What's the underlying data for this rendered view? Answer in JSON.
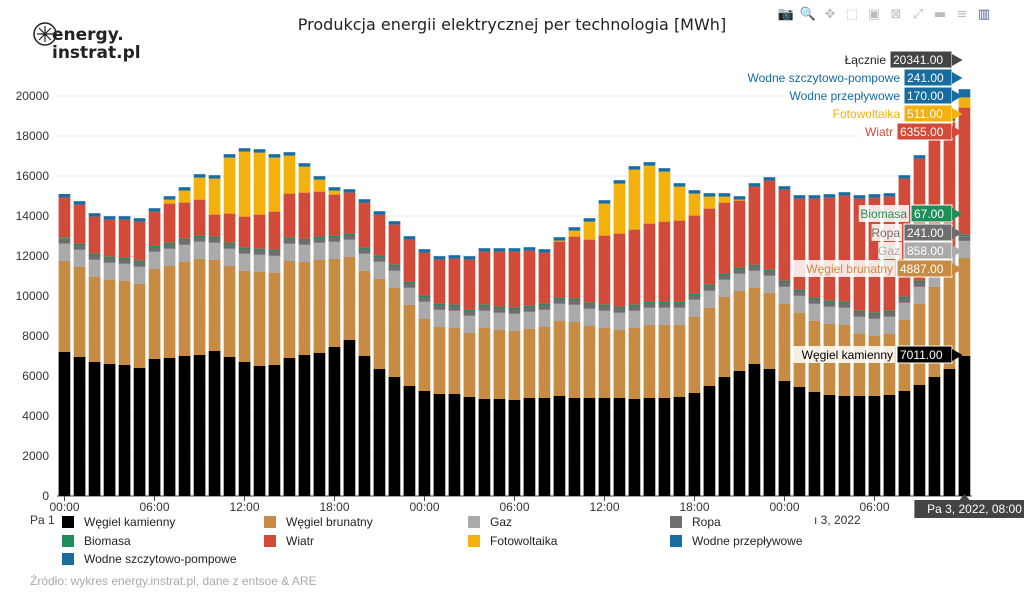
{
  "logo": {
    "line1": "energy.",
    "line2": "instrat.pl"
  },
  "modebar": [
    {
      "name": "camera-icon",
      "glyph": "📷"
    },
    {
      "name": "zoom-icon",
      "glyph": "🔍"
    },
    {
      "name": "pan-icon",
      "glyph": "✥"
    },
    {
      "name": "box-select-icon",
      "glyph": "⬚"
    },
    {
      "name": "zoom-in-icon",
      "glyph": "▣"
    },
    {
      "name": "zoom-out-icon",
      "glyph": "⊠"
    },
    {
      "name": "autoscale-icon",
      "glyph": "⤢"
    },
    {
      "name": "spike-lines-icon",
      "glyph": "▬"
    },
    {
      "name": "hover-compare-icon",
      "glyph": "≡"
    },
    {
      "name": "plotly-logo-icon",
      "glyph": "▥"
    }
  ],
  "source_text": "Źródło: wykres energy.instrat.pl, dane z entsoe & ARE",
  "hover_x_label": "Pa 3, 2022, 08:00",
  "x_tick_prefix_left": "Pa 1",
  "x_tick_suffix_right": "ı 3, 2022",
  "chart_data": {
    "type": "bar",
    "stacked": true,
    "title": "Produkcja energii elektrycznej per technologia [MWh]",
    "ylim": [
      0,
      20000
    ],
    "yticks": [
      0,
      2000,
      4000,
      6000,
      8000,
      10000,
      12000,
      14000,
      16000,
      18000,
      20000
    ],
    "xticks": [
      "00:00",
      "06:00",
      "12:00",
      "18:00",
      "00:00",
      "06:00",
      "12:00",
      "18:00",
      "00:00",
      "06:00"
    ],
    "grid": true,
    "legend_position": "bottom",
    "series": [
      {
        "name": "Węgiel kamienny",
        "color": "#000000",
        "values": [
          7200,
          6950,
          6700,
          6600,
          6550,
          6400,
          6850,
          6900,
          7000,
          7050,
          7250,
          6950,
          6700,
          6500,
          6550,
          6900,
          7050,
          7150,
          7450,
          7800,
          7000,
          6350,
          5950,
          5500,
          5250,
          5100,
          5100,
          4950,
          4850,
          4850,
          4800,
          4900,
          4900,
          5000,
          4900,
          4900,
          4900,
          4900,
          4850,
          4900,
          4900,
          4950,
          5150,
          5500,
          5950,
          6250,
          6600,
          6350,
          5750,
          5450,
          5200,
          5050,
          5000,
          5000,
          5000,
          5050,
          5250,
          5550,
          5950,
          6350,
          7011
        ]
      },
      {
        "name": "Węgiel brunatny",
        "color": "#c88b44",
        "values": [
          4550,
          4500,
          4250,
          4200,
          4200,
          4200,
          4500,
          4600,
          4700,
          4800,
          4550,
          4550,
          4550,
          4700,
          4600,
          4850,
          4650,
          4650,
          4400,
          4150,
          4250,
          4500,
          4450,
          4050,
          3600,
          3350,
          3300,
          3200,
          3550,
          3450,
          3450,
          3450,
          3550,
          3750,
          3800,
          3600,
          3500,
          3400,
          3550,
          3650,
          3650,
          3600,
          3800,
          3900,
          4000,
          4000,
          3800,
          3800,
          3850,
          3700,
          3550,
          3550,
          3550,
          3100,
          3000,
          3050,
          3550,
          4050,
          4500,
          4850,
          4887
        ]
      },
      {
        "name": "Gaz",
        "color": "#aaaaaa",
        "values": [
          870,
          860,
          860,
          860,
          860,
          860,
          860,
          860,
          860,
          860,
          860,
          860,
          860,
          860,
          860,
          860,
          860,
          860,
          860,
          860,
          860,
          860,
          860,
          860,
          860,
          860,
          860,
          860,
          860,
          860,
          860,
          860,
          860,
          860,
          860,
          860,
          860,
          860,
          860,
          860,
          860,
          860,
          860,
          860,
          860,
          860,
          860,
          860,
          860,
          860,
          860,
          860,
          860,
          860,
          860,
          860,
          860,
          860,
          860,
          860,
          858
        ]
      },
      {
        "name": "Ropa",
        "color": "#6e6e6e",
        "values": [
          240,
          240,
          240,
          240,
          240,
          240,
          240,
          240,
          240,
          240,
          240,
          240,
          240,
          240,
          240,
          240,
          240,
          240,
          240,
          240,
          240,
          240,
          240,
          240,
          240,
          240,
          240,
          240,
          240,
          240,
          240,
          240,
          240,
          240,
          240,
          240,
          240,
          240,
          240,
          240,
          240,
          240,
          240,
          240,
          240,
          240,
          240,
          240,
          240,
          240,
          240,
          240,
          240,
          240,
          240,
          240,
          240,
          240,
          240,
          240,
          241
        ]
      },
      {
        "name": "Biomasa",
        "color": "#1e8f5a",
        "values": [
          70,
          70,
          70,
          70,
          70,
          70,
          70,
          70,
          70,
          70,
          70,
          70,
          70,
          70,
          70,
          70,
          70,
          70,
          70,
          70,
          70,
          70,
          70,
          70,
          70,
          70,
          70,
          70,
          70,
          70,
          70,
          70,
          70,
          70,
          70,
          70,
          70,
          70,
          70,
          70,
          70,
          70,
          70,
          70,
          70,
          70,
          70,
          70,
          70,
          70,
          70,
          70,
          70,
          70,
          70,
          70,
          70,
          70,
          70,
          70,
          67
        ]
      },
      {
        "name": "Wiatr",
        "color": "#d24b3a",
        "values": [
          2000,
          1950,
          1850,
          1850,
          1900,
          1950,
          1700,
          1950,
          1800,
          1800,
          1100,
          1450,
          1550,
          1700,
          1900,
          2200,
          2300,
          2250,
          2050,
          2050,
          2250,
          2050,
          2000,
          2100,
          2150,
          2200,
          2300,
          2500,
          2650,
          2750,
          2800,
          2750,
          2550,
          2800,
          3100,
          3150,
          3450,
          3650,
          3750,
          3900,
          4000,
          4050,
          3900,
          3800,
          3550,
          3350,
          3900,
          4450,
          4550,
          4550,
          4950,
          5150,
          5300,
          5600,
          5750,
          5700,
          5900,
          6100,
          6150,
          6300,
          6355
        ]
      },
      {
        "name": "Fotowoltaika",
        "color": "#f2b10c",
        "values": [
          0,
          0,
          0,
          0,
          0,
          0,
          0,
          200,
          600,
          1100,
          1800,
          2800,
          3250,
          3100,
          2700,
          1900,
          1300,
          600,
          200,
          0,
          0,
          0,
          0,
          0,
          0,
          0,
          0,
          0,
          0,
          0,
          0,
          0,
          0,
          50,
          300,
          900,
          1600,
          2500,
          3000,
          2900,
          2500,
          1700,
          1100,
          600,
          300,
          50,
          0,
          0,
          0,
          0,
          0,
          0,
          0,
          0,
          0,
          0,
          0,
          0,
          0,
          100,
          511
        ]
      },
      {
        "name": "Wodne przepływowe",
        "color": "#176ca0",
        "values": [
          170,
          170,
          170,
          170,
          170,
          170,
          170,
          170,
          170,
          170,
          170,
          170,
          170,
          170,
          170,
          170,
          170,
          170,
          170,
          170,
          170,
          170,
          170,
          170,
          170,
          170,
          170,
          170,
          170,
          170,
          170,
          170,
          170,
          170,
          170,
          170,
          170,
          170,
          170,
          170,
          170,
          170,
          170,
          170,
          170,
          170,
          170,
          170,
          170,
          170,
          170,
          170,
          170,
          170,
          170,
          170,
          170,
          170,
          170,
          170,
          170
        ]
      },
      {
        "name": "Wodne szczytowo-pompowe",
        "color": "#176ca0",
        "values": [
          0,
          0,
          0,
          0,
          0,
          0,
          0,
          0,
          0,
          0,
          0,
          0,
          0,
          0,
          0,
          0,
          0,
          0,
          0,
          0,
          0,
          0,
          0,
          0,
          0,
          0,
          0,
          0,
          0,
          0,
          0,
          0,
          0,
          0,
          0,
          0,
          0,
          0,
          0,
          0,
          0,
          0,
          0,
          0,
          0,
          0,
          0,
          0,
          0,
          0,
          0,
          0,
          0,
          0,
          0,
          0,
          0,
          0,
          0,
          0,
          241
        ]
      }
    ],
    "hover": {
      "total_label": "Łącznie",
      "total_value": "20341.00",
      "items": [
        {
          "label": "Wodne szczytowo-pompowe",
          "value": "241.00",
          "color": "#176ca0"
        },
        {
          "label": "Wodne przepływowe",
          "value": "170.00",
          "color": "#176ca0"
        },
        {
          "label": "Fotowoltaika",
          "value": "511.00",
          "color": "#f2b10c"
        },
        {
          "label": "Wiatr",
          "value": "6355.00",
          "color": "#d24b3a"
        },
        {
          "label": "Biomasa",
          "value": "67.00",
          "color": "#1e8f5a"
        },
        {
          "label": "Ropa",
          "value": "241.00",
          "color": "#6e6e6e"
        },
        {
          "label": "Gaz",
          "value": "858.00",
          "color": "#aaaaaa"
        },
        {
          "label": "Węgiel brunatny",
          "value": "4887.00",
          "color": "#c88b44"
        },
        {
          "label": "Węgiel kamienny",
          "value": "7011.00",
          "color": "#000000"
        }
      ]
    }
  }
}
